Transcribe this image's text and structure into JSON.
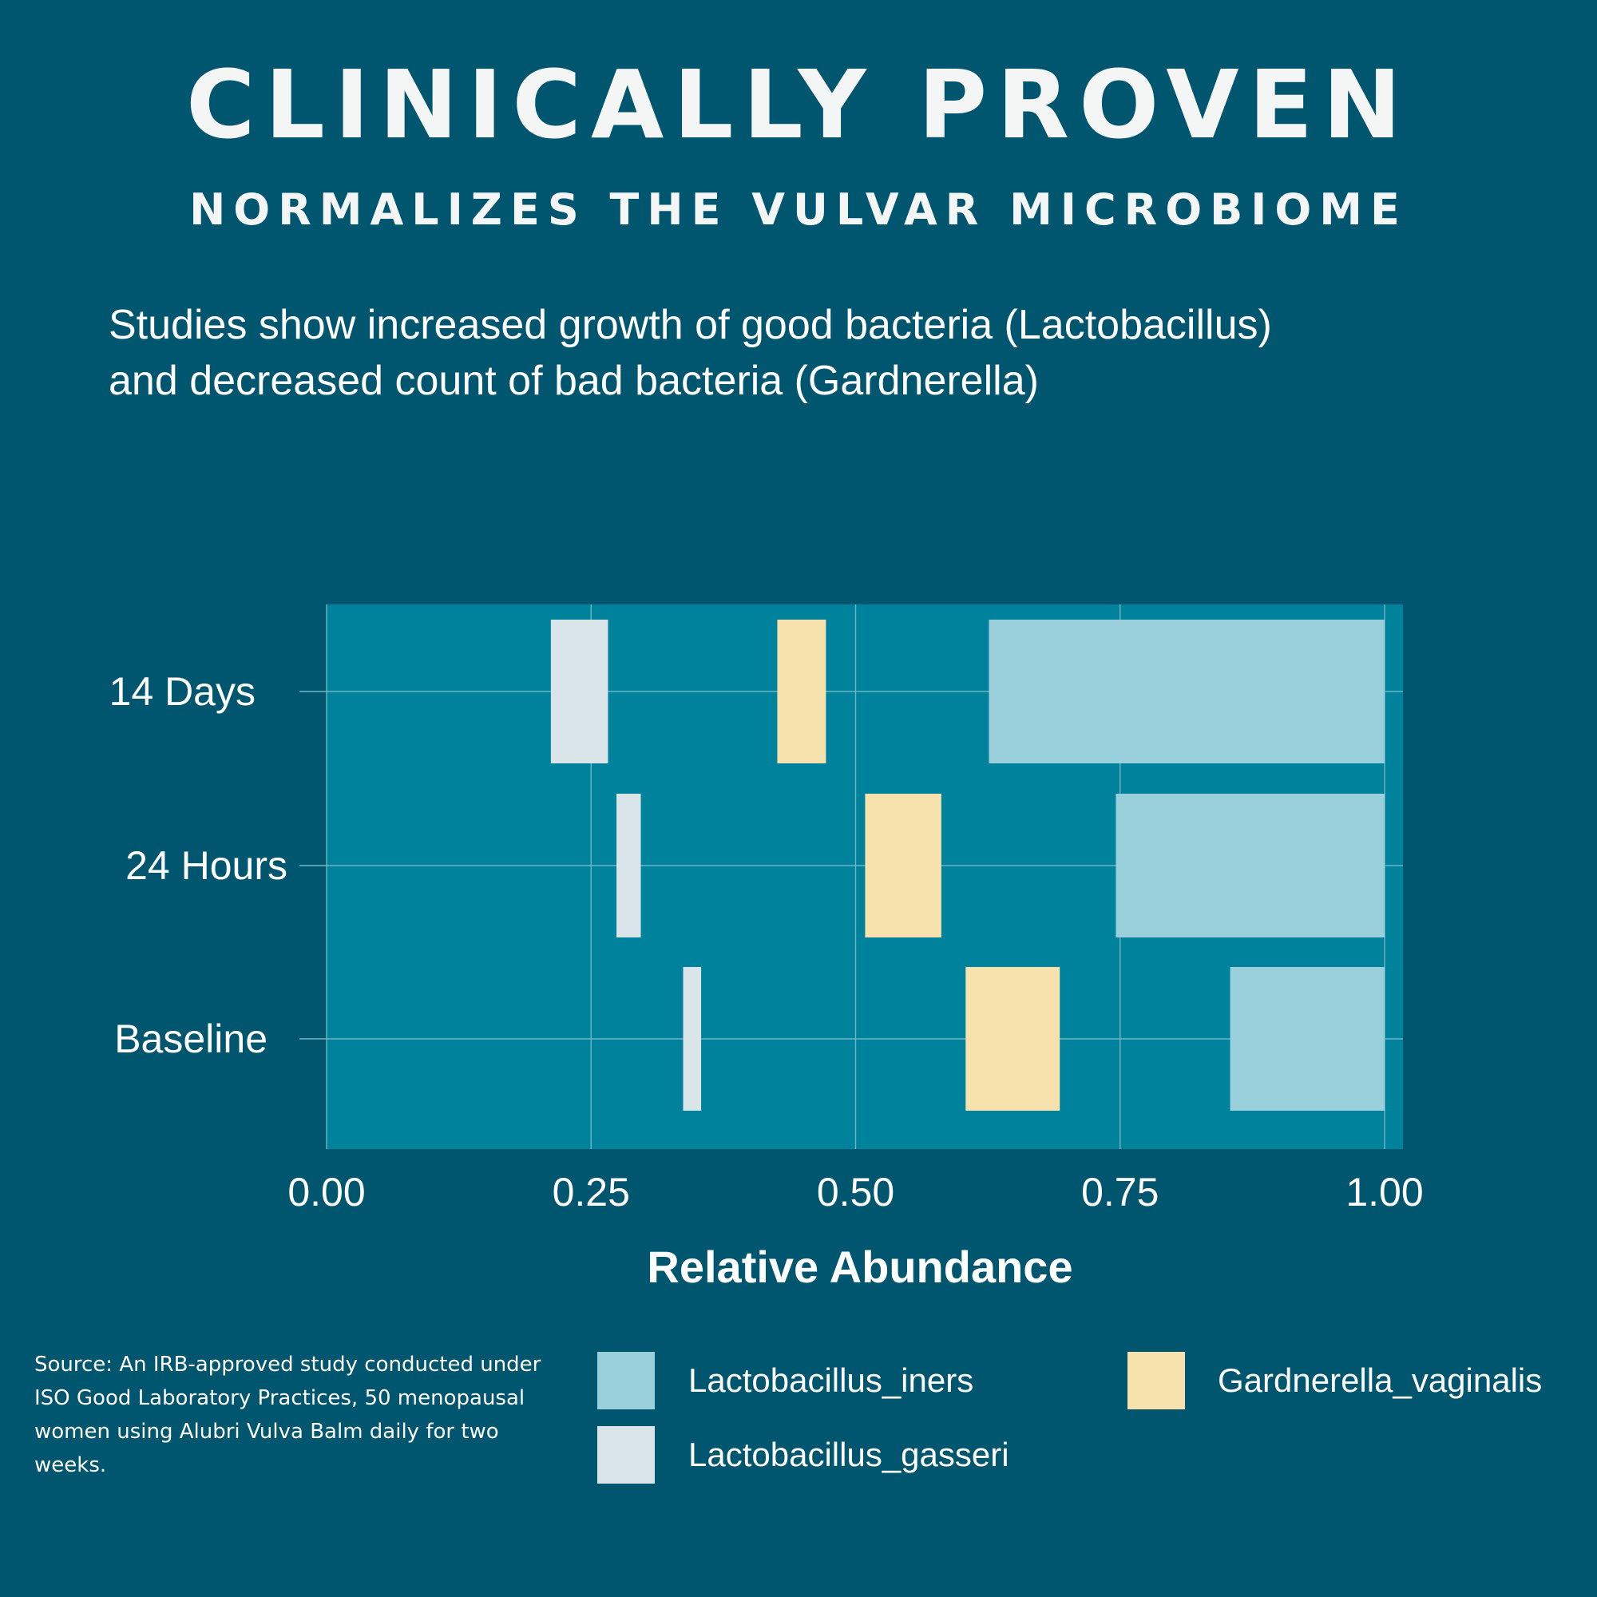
{
  "header": {
    "title": "CLINICALLY PROVEN",
    "subtitle": "NORMALIZES THE VULVAR MICROBIOME",
    "description_line1": "Studies show increased growth of good bacteria (Lactobacillus)",
    "description_line2": "and decreased count of bad bacteria (Gardnerella)"
  },
  "colors": {
    "background": "#00556f",
    "plot_background": "#00829c",
    "grid": "#6fb6c6",
    "lactobacillus_iners": "#9ad0dc",
    "gardnerella_vaginalis": "#f7e2ad",
    "lactobacillus_gasseri": "#dae5ea"
  },
  "chart_data": {
    "type": "bar",
    "orientation": "horizontal",
    "xlabel": "Relative Abundance",
    "ylabel": "",
    "xlim": [
      0,
      1.02
    ],
    "x_ticks": [
      0.0,
      0.25,
      0.5,
      0.75,
      1.0
    ],
    "x_tick_labels": [
      "0.00",
      "0.25",
      "0.50",
      "0.75",
      "1.00"
    ],
    "categories": [
      "14 Days",
      "24 Hours",
      "Baseline"
    ],
    "grid": true,
    "series": [
      {
        "name": "Lactobacillus_gasseri",
        "color_key": "lactobacillus_gasseri",
        "ranges": [
          [
            0.212,
            0.266
          ],
          [
            0.274,
            0.297
          ],
          [
            0.337,
            0.354
          ]
        ]
      },
      {
        "name": "Gardnerella_vaginalis",
        "color_key": "gardnerella_vaginalis",
        "ranges": [
          [
            0.426,
            0.472
          ],
          [
            0.509,
            0.581
          ],
          [
            0.604,
            0.693
          ]
        ]
      },
      {
        "name": "Lactobacillus_iners",
        "color_key": "lactobacillus_iners",
        "ranges": [
          [
            0.626,
            1.0
          ],
          [
            0.746,
            1.0
          ],
          [
            0.854,
            1.0
          ]
        ]
      }
    ]
  },
  "legend": {
    "items": [
      {
        "label": "Lactobacillus_iners",
        "color_key": "lactobacillus_iners"
      },
      {
        "label": "Gardnerella_vaginalis",
        "color_key": "gardnerella_vaginalis"
      },
      {
        "label": "Lactobacillus_gasseri",
        "color_key": "lactobacillus_gasseri"
      }
    ]
  },
  "footer": {
    "source": "Source: An IRB-approved study conducted under ISO Good Laboratory Practices, 50 menopausal women using Alubri Vulva Balm daily for two weeks."
  }
}
